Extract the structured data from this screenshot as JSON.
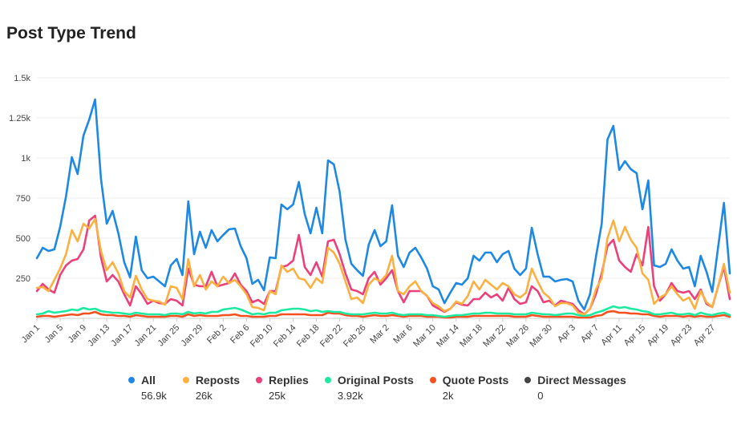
{
  "title": "Post Type Trend",
  "chart_data": {
    "type": "line",
    "title": "Post Type Trend",
    "ylim": [
      0,
      1500
    ],
    "y_ticks": [
      250,
      500,
      750,
      1000,
      1250,
      1500
    ],
    "y_tick_labels": [
      "250",
      "500",
      "750",
      "1k",
      "1.25k",
      "1.5k"
    ],
    "x_tick_labels": [
      "Jan 1",
      "Jan 5",
      "Jan 9",
      "Jan 13",
      "Jan 17",
      "Jan 21",
      "Jan 25",
      "Jan 29",
      "Feb 2",
      "Feb 6",
      "Feb 10",
      "Feb 14",
      "Feb 18",
      "Feb 22",
      "Feb 26",
      "Mar 2",
      "Mar 6",
      "Mar 10",
      "Mar 14",
      "Mar 18",
      "Mar 22",
      "Mar 26",
      "Mar 30",
      "Apr 3",
      "Apr 7",
      "Apr 11",
      "Apr 15",
      "Apr 19",
      "Apr 23",
      "Apr 27"
    ],
    "x_tick_every_days": 4,
    "grid": true,
    "legend_position": "bottom",
    "series": [
      {
        "name": "All",
        "color": "#1e88e5",
        "total": "56.9k",
        "values": [
          375,
          440,
          420,
          430,
          570,
          760,
          1005,
          900,
          1140,
          1240,
          1365,
          870,
          590,
          670,
          530,
          350,
          255,
          510,
          300,
          250,
          260,
          230,
          200,
          330,
          370,
          270,
          730,
          400,
          540,
          440,
          550,
          480,
          520,
          555,
          560,
          450,
          375,
          215,
          240,
          175,
          380,
          375,
          710,
          680,
          710,
          850,
          650,
          530,
          690,
          530,
          985,
          960,
          790,
          490,
          340,
          300,
          265,
          460,
          550,
          450,
          480,
          705,
          390,
          320,
          410,
          440,
          380,
          310,
          200,
          180,
          95,
          160,
          220,
          210,
          250,
          390,
          360,
          410,
          410,
          350,
          400,
          420,
          310,
          270,
          310,
          565,
          400,
          260,
          260,
          230,
          240,
          245,
          230,
          110,
          55,
          150,
          380,
          590,
          1115,
          1200,
          925,
          980,
          930,
          905,
          680,
          860,
          330,
          320,
          340,
          430,
          360,
          310,
          320,
          200,
          390,
          290,
          165,
          445,
          720,
          280
        ]
      },
      {
        "name": "Reposts",
        "color": "#fbb040",
        "total": "26k",
        "values": [
          190,
          195,
          170,
          240,
          310,
          400,
          550,
          480,
          590,
          560,
          620,
          420,
          300,
          350,
          280,
          170,
          130,
          265,
          180,
          120,
          110,
          105,
          85,
          200,
          190,
          120,
          370,
          200,
          270,
          180,
          230,
          200,
          260,
          220,
          240,
          200,
          150,
          70,
          65,
          50,
          170,
          150,
          330,
          290,
          310,
          250,
          240,
          190,
          250,
          220,
          440,
          410,
          340,
          230,
          120,
          130,
          95,
          210,
          250,
          230,
          270,
          390,
          170,
          150,
          200,
          230,
          170,
          140,
          95,
          75,
          45,
          60,
          105,
          90,
          140,
          230,
          180,
          240,
          210,
          180,
          220,
          200,
          150,
          130,
          160,
          310,
          230,
          160,
          130,
          75,
          95,
          95,
          80,
          35,
          25,
          60,
          180,
          250,
          500,
          610,
          480,
          570,
          490,
          440,
          280,
          240,
          90,
          130,
          150,
          200,
          150,
          110,
          130,
          60,
          170,
          100,
          70,
          200,
          340,
          160
        ]
      },
      {
        "name": "Replies",
        "color": "#ec407a",
        "total": "25k",
        "values": [
          170,
          215,
          180,
          160,
          270,
          330,
          360,
          370,
          430,
          610,
          640,
          380,
          230,
          270,
          230,
          150,
          80,
          200,
          150,
          90,
          110,
          95,
          90,
          120,
          110,
          80,
          310,
          210,
          200,
          200,
          290,
          200,
          210,
          220,
          280,
          210,
          170,
          100,
          115,
          90,
          170,
          170,
          320,
          330,
          360,
          520,
          320,
          270,
          350,
          260,
          480,
          490,
          400,
          280,
          180,
          170,
          150,
          250,
          290,
          210,
          250,
          300,
          170,
          100,
          170,
          170,
          170,
          140,
          80,
          60,
          40,
          60,
          100,
          85,
          80,
          120,
          120,
          160,
          130,
          150,
          110,
          190,
          120,
          90,
          100,
          200,
          170,
          100,
          110,
          80,
          110,
          100,
          90,
          50,
          25,
          60,
          150,
          280,
          450,
          490,
          360,
          320,
          290,
          400,
          330,
          570,
          200,
          110,
          150,
          220,
          170,
          160,
          170,
          120,
          180,
          90,
          70,
          200,
          320,
          120
        ]
      },
      {
        "name": "Original Posts",
        "color": "#1de9a0",
        "total": "3.92k",
        "values": [
          25,
          30,
          45,
          35,
          40,
          45,
          55,
          50,
          65,
          55,
          60,
          45,
          40,
          35,
          35,
          30,
          25,
          35,
          30,
          25,
          25,
          25,
          20,
          30,
          30,
          25,
          40,
          30,
          35,
          30,
          40,
          40,
          55,
          60,
          65,
          55,
          40,
          25,
          30,
          25,
          35,
          35,
          50,
          55,
          60,
          60,
          55,
          45,
          50,
          40,
          45,
          40,
          40,
          30,
          25,
          25,
          25,
          30,
          35,
          30,
          30,
          35,
          25,
          20,
          25,
          25,
          25,
          20,
          20,
          15,
          10,
          15,
          20,
          20,
          25,
          30,
          30,
          35,
          35,
          30,
          30,
          30,
          25,
          25,
          25,
          35,
          30,
          25,
          25,
          20,
          25,
          30,
          30,
          20,
          15,
          20,
          35,
          45,
          60,
          75,
          65,
          70,
          60,
          55,
          45,
          40,
          25,
          25,
          30,
          35,
          25,
          25,
          30,
          20,
          35,
          25,
          20,
          30,
          35,
          20
        ]
      },
      {
        "name": "Quote Posts",
        "color": "#f4511e",
        "total": "2k",
        "values": [
          10,
          15,
          15,
          10,
          15,
          20,
          25,
          20,
          30,
          30,
          40,
          25,
          20,
          20,
          15,
          15,
          10,
          20,
          15,
          10,
          10,
          10,
          10,
          15,
          15,
          10,
          25,
          15,
          20,
          15,
          15,
          15,
          20,
          20,
          25,
          15,
          15,
          10,
          10,
          10,
          15,
          15,
          25,
          25,
          25,
          25,
          25,
          20,
          20,
          20,
          35,
          30,
          30,
          20,
          15,
          15,
          10,
          15,
          20,
          15,
          15,
          20,
          15,
          10,
          15,
          15,
          15,
          10,
          10,
          10,
          5,
          5,
          10,
          10,
          10,
          15,
          15,
          15,
          15,
          15,
          15,
          15,
          10,
          10,
          10,
          20,
          15,
          10,
          10,
          10,
          10,
          10,
          10,
          5,
          5,
          5,
          15,
          20,
          40,
          45,
          35,
          35,
          30,
          30,
          25,
          25,
          15,
          10,
          15,
          15,
          15,
          10,
          15,
          10,
          15,
          10,
          10,
          15,
          20,
          10
        ]
      },
      {
        "name": "Direct Messages",
        "color": "#444444",
        "total": "0",
        "values": []
      }
    ]
  }
}
